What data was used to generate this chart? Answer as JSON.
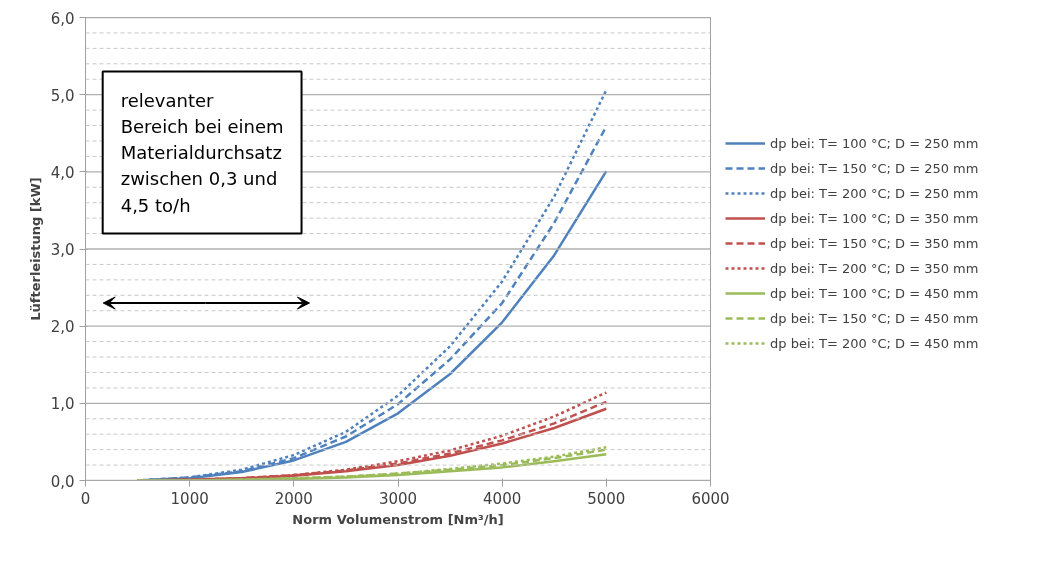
{
  "chart_data": {
    "type": "line",
    "xlabel": "Norm Volumenstrom [Nm³/h]",
    "ylabel": "Lüfterleistung [kW]",
    "x": [
      500,
      1000,
      1500,
      2000,
      2500,
      3000,
      3500,
      4000,
      4500,
      5000
    ],
    "series": [
      {
        "name": "dp bei: T= 100 °C; D = 250 mm",
        "color": "#4f81bd",
        "line_style": "solid",
        "values": [
          0.0,
          0.03,
          0.11,
          0.26,
          0.5,
          0.87,
          1.38,
          2.05,
          2.92,
          4.01
        ]
      },
      {
        "name": "dp bei: T= 150 °C; D = 250 mm",
        "color": "#4f81bd",
        "line_style": "dashed",
        "values": [
          0.0,
          0.04,
          0.12,
          0.29,
          0.57,
          0.99,
          1.57,
          2.3,
          3.34,
          4.59
        ]
      },
      {
        "name": "dp bei: T= 200 °C; D = 250 mm",
        "color": "#4f81bd",
        "line_style": "dotted",
        "values": [
          0.0,
          0.04,
          0.14,
          0.33,
          0.63,
          1.1,
          1.74,
          2.58,
          3.68,
          5.06
        ]
      },
      {
        "name": "dp bei: T= 100 °C; D = 350 mm",
        "color": "#c0504d",
        "line_style": "solid",
        "values": [
          0.0,
          0.01,
          0.03,
          0.06,
          0.12,
          0.2,
          0.32,
          0.48,
          0.68,
          0.93
        ]
      },
      {
        "name": "dp bei: T= 150 °C; D = 350 mm",
        "color": "#c0504d",
        "line_style": "dashed",
        "values": [
          0.0,
          0.01,
          0.03,
          0.07,
          0.13,
          0.22,
          0.35,
          0.52,
          0.74,
          1.02
        ]
      },
      {
        "name": "dp bei: T= 200 °C; D = 350 mm",
        "color": "#c0504d",
        "line_style": "dotted",
        "values": [
          0.0,
          0.01,
          0.03,
          0.07,
          0.14,
          0.25,
          0.39,
          0.58,
          0.83,
          1.14
        ]
      },
      {
        "name": "dp bei: T= 100 °C; D = 450 mm",
        "color": "#9bbb59",
        "line_style": "solid",
        "values": [
          0.0,
          0.0,
          0.01,
          0.02,
          0.04,
          0.07,
          0.12,
          0.17,
          0.25,
          0.34
        ]
      },
      {
        "name": "dp bei: T= 150 °C; D = 450 mm",
        "color": "#9bbb59",
        "line_style": "dashed",
        "values": [
          0.0,
          0.0,
          0.01,
          0.03,
          0.05,
          0.09,
          0.14,
          0.2,
          0.29,
          0.4
        ]
      },
      {
        "name": "dp bei: T= 200 °C; D = 450 mm",
        "color": "#9bbb59",
        "line_style": "dotted",
        "values": [
          0.0,
          0.0,
          0.01,
          0.03,
          0.05,
          0.09,
          0.15,
          0.22,
          0.31,
          0.43
        ]
      }
    ],
    "xlim": [
      0,
      6000
    ],
    "xticks": [
      0,
      1000,
      2000,
      3000,
      4000,
      5000,
      6000
    ],
    "ylim": [
      0,
      6
    ],
    "yticks": [
      {
        "value": 0,
        "label": "0,0"
      },
      {
        "value": 0.2,
        "label": null
      },
      {
        "value": 0.4,
        "label": null
      },
      {
        "value": 0.6,
        "label": null
      },
      {
        "value": 0.8,
        "label": null
      },
      {
        "value": 1,
        "label": "1,0"
      },
      {
        "value": 1.2,
        "label": null
      },
      {
        "value": 1.4,
        "label": null
      },
      {
        "value": 1.6,
        "label": null
      },
      {
        "value": 1.8,
        "label": null
      },
      {
        "value": 2,
        "label": "2,0"
      },
      {
        "value": 2.2,
        "label": null
      },
      {
        "value": 2.4,
        "label": null
      },
      {
        "value": 2.6,
        "label": null
      },
      {
        "value": 2.8,
        "label": null
      },
      {
        "value": 3,
        "label": "3,0"
      },
      {
        "value": 3.2,
        "label": null
      },
      {
        "value": 3.4,
        "label": null
      },
      {
        "value": 3.6,
        "label": null
      },
      {
        "value": 3.8,
        "label": null
      },
      {
        "value": 4,
        "label": "4,0"
      },
      {
        "value": 4.2,
        "label": null
      },
      {
        "value": 4.4,
        "label": null
      },
      {
        "value": 4.6,
        "label": null
      },
      {
        "value": 4.8,
        "label": null
      },
      {
        "value": 5,
        "label": "5,0"
      },
      {
        "value": 5.2,
        "label": null
      },
      {
        "value": 5.4,
        "label": null
      },
      {
        "value": 5.6,
        "label": null
      },
      {
        "value": 5.8,
        "label": null
      },
      {
        "value": 6,
        "label": "6,0"
      }
    ],
    "annotations": [
      "relevanter\nBereich bei einem\nMaterialdurchsatz\nzwischen 0,3 und\n4,5 to/h"
    ],
    "grid": "y",
    "legend": "right",
    "marker": "none"
  }
}
